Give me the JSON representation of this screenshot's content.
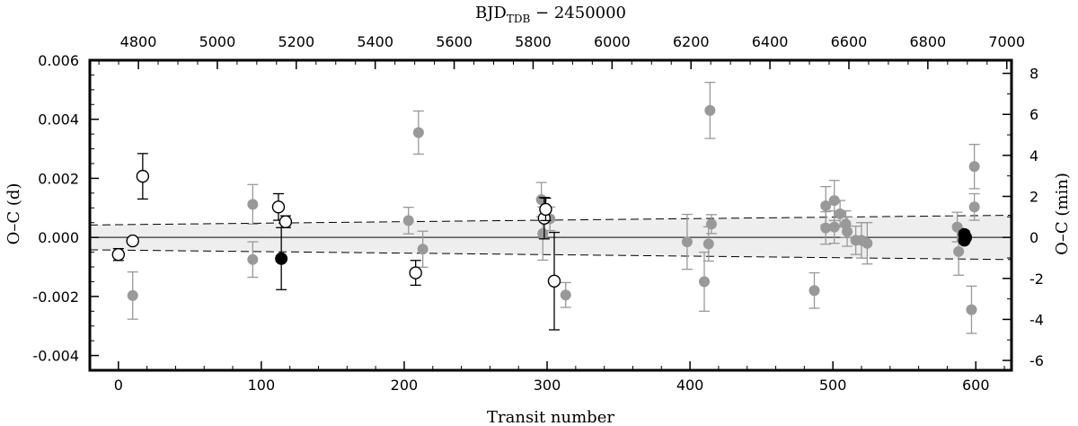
{
  "chart_data": {
    "type": "scatter",
    "xlabel": "Transit number",
    "x2label_main": "BJD",
    "x2label_sub": "TDB",
    "x2label_rest": " − 2450000",
    "ylabel": "O–C (d)",
    "y2label": "O–C (min)",
    "xlim": [
      -20,
      625
    ],
    "ylim": [
      -0.0045,
      0.006
    ],
    "x2lim": [
      4677,
      7012
    ],
    "y2lim": [
      -6.48,
      8.64
    ],
    "x_ticks": [
      0,
      100,
      200,
      300,
      400,
      500,
      600
    ],
    "x_tick_labels": [
      "0",
      "100",
      "200",
      "300",
      "400",
      "500",
      "600"
    ],
    "y_ticks": [
      -0.004,
      -0.002,
      0.0,
      0.002,
      0.004,
      0.006
    ],
    "y_tick_labels": [
      "-0.004",
      "-0.002",
      "0.000",
      "0.002",
      "0.004",
      "0.006"
    ],
    "x2_ticks": [
      4800,
      5000,
      5200,
      5400,
      5600,
      5800,
      6000,
      6200,
      6400,
      6600,
      6800,
      7000
    ],
    "x2_tick_labels": [
      "4800",
      "5000",
      "5200",
      "5400",
      "5600",
      "5800",
      "6000",
      "6200",
      "6400",
      "6600",
      "6800",
      "7000"
    ],
    "y2_ticks": [
      -6,
      -4,
      -2,
      0,
      2,
      4,
      6,
      8
    ],
    "y2_tick_labels": [
      "-6",
      "-4",
      "-2",
      "0",
      "2",
      "4",
      "6",
      "8"
    ],
    "colors": {
      "gray_points": "#999999",
      "band_fill": "#eeeeee",
      "axis": "#000000"
    },
    "confidence_band": {
      "x": [
        -20,
        625
      ],
      "upper": [
        0.00042,
        0.00075
      ],
      "lower": [
        -0.00042,
        -0.00075
      ]
    },
    "series": [
      {
        "style": "gray-filled",
        "points": [
          {
            "x": 10,
            "y": -0.00197,
            "err": 0.0008
          },
          {
            "x": 94,
            "y": 0.00112,
            "err": 0.00067
          },
          {
            "x": 94,
            "y": -0.00075,
            "err": 0.0006
          },
          {
            "x": 203,
            "y": 0.00057,
            "err": 0.00045
          },
          {
            "x": 210,
            "y": 0.00355,
            "err": 0.00073
          },
          {
            "x": 213,
            "y": -0.0004,
            "err": 0.00061
          },
          {
            "x": 296,
            "y": 0.00128,
            "err": 0.00058
          },
          {
            "x": 297,
            "y": 0.00013,
            "err": 0.0009
          },
          {
            "x": 302,
            "y": 0.00063,
            "err": 0.0004
          },
          {
            "x": 313,
            "y": -0.00195,
            "err": 0.00042
          },
          {
            "x": 398,
            "y": -0.00015,
            "err": 0.00093
          },
          {
            "x": 410,
            "y": -0.0015,
            "err": 0.001
          },
          {
            "x": 413,
            "y": -0.00022,
            "err": 0.00058
          },
          {
            "x": 414,
            "y": 0.0043,
            "err": 0.00095
          },
          {
            "x": 415,
            "y": 0.00045,
            "err": 0.00032
          },
          {
            "x": 487,
            "y": -0.0018,
            "err": 0.0006
          },
          {
            "x": 495,
            "y": 0.00107,
            "err": 0.00065
          },
          {
            "x": 495,
            "y": 0.00032,
            "err": 0.00055
          },
          {
            "x": 501,
            "y": 0.00125,
            "err": 0.00068
          },
          {
            "x": 501,
            "y": 0.00035,
            "err": 0.00055
          },
          {
            "x": 505,
            "y": 0.0008,
            "err": 0.00045
          },
          {
            "x": 509,
            "y": 0.00045,
            "err": 0.00045
          },
          {
            "x": 510,
            "y": 0.0002,
            "err": 0.0005
          },
          {
            "x": 516,
            "y": -0.0001,
            "err": 0.00048
          },
          {
            "x": 520,
            "y": -0.0001,
            "err": 0.0006
          },
          {
            "x": 524,
            "y": -0.0002,
            "err": 0.0007
          },
          {
            "x": 587,
            "y": 0.00035,
            "err": 0.0005
          },
          {
            "x": 588,
            "y": -0.00048,
            "err": 0.0008
          },
          {
            "x": 597,
            "y": -0.00245,
            "err": 0.0008
          },
          {
            "x": 599,
            "y": 0.0024,
            "err": 0.00075
          },
          {
            "x": 599,
            "y": 0.00103,
            "err": 0.00045
          }
        ]
      },
      {
        "style": "black-open",
        "points": [
          {
            "x": 0,
            "y": -0.00058,
            "err": 0.0002
          },
          {
            "x": 10,
            "y": -0.00012,
            "err": 0.0001
          },
          {
            "x": 17,
            "y": 0.00207,
            "err": 0.00077
          },
          {
            "x": 112,
            "y": 0.00103,
            "err": 0.00045
          },
          {
            "x": 117,
            "y": 0.00053,
            "err": 0.0002
          },
          {
            "x": 208,
            "y": -0.0012,
            "err": 0.00042
          },
          {
            "x": 298,
            "y": 0.00065,
            "err": 0.0007
          },
          {
            "x": 299,
            "y": 0.00095,
            "err": 0.00038
          },
          {
            "x": 305,
            "y": -0.00148,
            "err": 0.00165
          }
        ]
      },
      {
        "style": "black-filled",
        "points": [
          {
            "x": 114,
            "y": -0.00072,
            "err": 0.00105
          },
          {
            "x": 592,
            "y": 0.0001,
            "err": 0.00012
          },
          {
            "x": 592,
            "y": -0.0001,
            "err": 0.0001
          },
          {
            "x": 593,
            "y": 0.0,
            "err": 0.0001
          }
        ]
      }
    ]
  }
}
